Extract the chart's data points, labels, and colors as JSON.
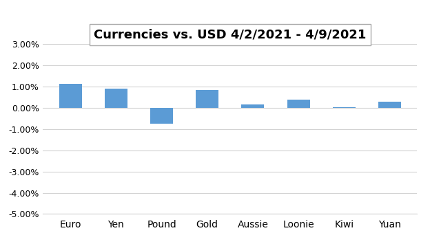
{
  "title": "Currencies vs. USD 4/2/2021 - 4/9/2021",
  "categories": [
    "Euro",
    "Yen",
    "Pound",
    "Gold",
    "Aussie",
    "Loonie",
    "Kiwi",
    "Yuan"
  ],
  "values": [
    0.0115,
    0.009,
    -0.0075,
    0.0085,
    0.0018,
    0.0038,
    0.0004,
    0.0028
  ],
  "bar_color": "#5B9BD5",
  "ylim": [
    -0.05,
    0.03
  ],
  "yticks": [
    -0.05,
    -0.04,
    -0.03,
    -0.02,
    -0.01,
    0.0,
    0.01,
    0.02,
    0.03
  ],
  "background_color": "#FFFFFF",
  "title_fontsize": 13,
  "title_box_facecolor": "#FFFFFF",
  "title_box_edgecolor": "#AAAAAA",
  "grid_color": "#D3D3D3",
  "grid_linewidth": 0.8,
  "bar_width": 0.5,
  "spine_color": "#D3D3D3",
  "tick_label_fontsize": 9,
  "x_tick_label_fontsize": 10
}
